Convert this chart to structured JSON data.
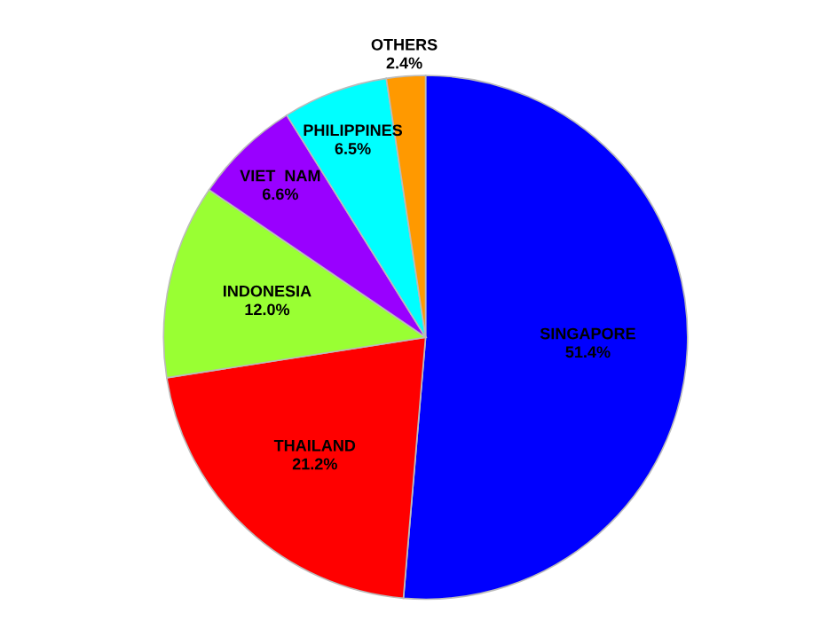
{
  "chart_data": {
    "type": "pie",
    "categories": [
      "SINGAPORE",
      "THAILAND",
      "INDONESIA",
      "VIET  NAM",
      "PHILIPPINES",
      "OTHERS"
    ],
    "values": [
      51.4,
      21.2,
      12.0,
      6.6,
      6.5,
      2.4
    ],
    "value_labels": [
      "51.4%",
      "21.2%",
      "12.0%",
      "6.6%",
      "6.5%",
      "2.4%"
    ],
    "colors": [
      "#0000ff",
      "#ff0000",
      "#99ff33",
      "#9900ff",
      "#00ffff",
      "#ff9900"
    ],
    "legend": false
  }
}
